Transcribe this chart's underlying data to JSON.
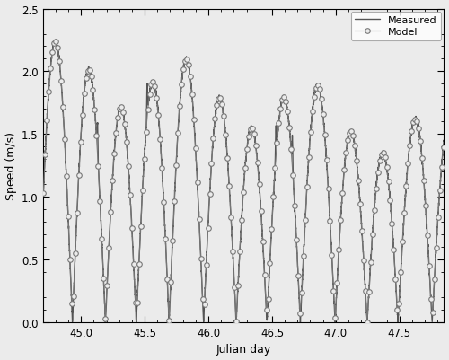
{
  "xlabel": "Julian day",
  "ylabel": "Speed (m/s)",
  "xlim": [
    44.7,
    47.85
  ],
  "ylim": [
    0,
    2.5
  ],
  "xticks": [
    45,
    45.5,
    46,
    46.5,
    47,
    47.5
  ],
  "yticks": [
    0,
    0.5,
    1.0,
    1.5,
    2.0,
    2.5
  ],
  "legend_labels": [
    "Model",
    "Measured"
  ],
  "model_color": "#777777",
  "measured_color": "#555555",
  "background_color": "#ebebeb",
  "figsize": [
    5.0,
    4.02
  ],
  "dpi": 100,
  "t_start": 44.7,
  "t_end": 47.85
}
